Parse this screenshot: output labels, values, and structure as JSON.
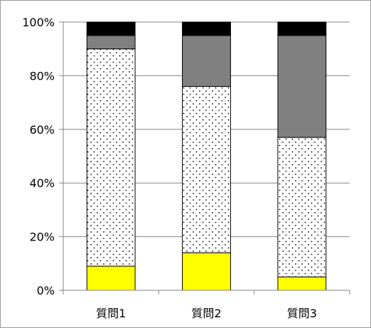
{
  "chart_data": {
    "type": "bar",
    "stacked": true,
    "percent_stacked": true,
    "categories": [
      "質問1",
      "質問2",
      "質問3"
    ],
    "series": [
      {
        "values": [
          9,
          14,
          5
        ],
        "color": "#ffff00",
        "pattern": "solid"
      },
      {
        "values": [
          81,
          62,
          52
        ],
        "color": "#ffffff",
        "pattern": "dotted"
      },
      {
        "values": [
          5,
          19,
          38
        ],
        "color": "#808080",
        "pattern": "solid"
      },
      {
        "values": [
          5,
          5,
          5
        ],
        "color": "#000000",
        "pattern": "solid"
      }
    ],
    "y_ticks": [
      "0%",
      "20%",
      "40%",
      "60%",
      "80%",
      "100%"
    ],
    "ylim": [
      0,
      100
    ],
    "grid": true,
    "legend": "none",
    "title": "",
    "xlabel": "",
    "ylabel": ""
  }
}
